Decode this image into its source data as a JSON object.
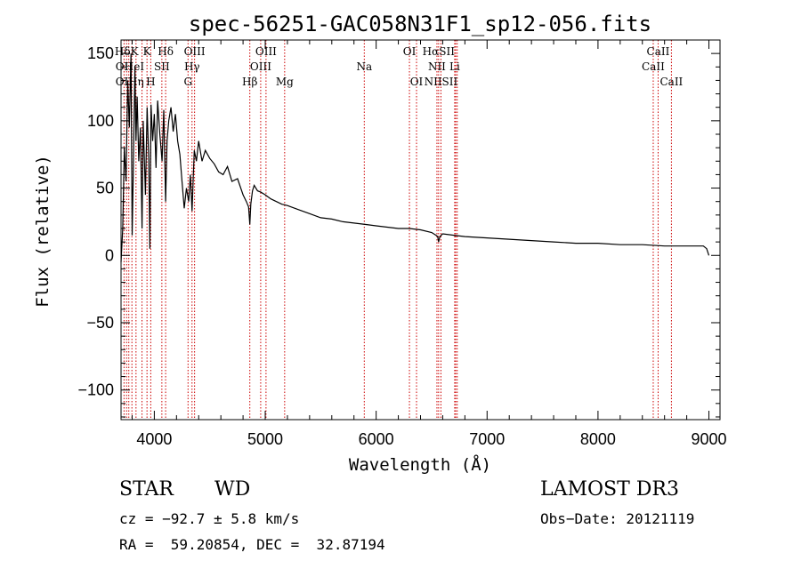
{
  "chart_data": {
    "type": "line",
    "title": "spec-56251-GAC058N31F1_sp12-056.fits",
    "xlabel": "Wavelength (Å)",
    "ylabel": "Flux (relative)",
    "xlim": [
      3700,
      9100
    ],
    "ylim": [
      -122,
      160
    ],
    "xticks": [
      4000,
      5000,
      6000,
      7000,
      8000,
      9000
    ],
    "yticks": [
      -100,
      -50,
      0,
      50,
      100,
      150
    ],
    "grid": false,
    "line_color": "#000000",
    "marker_color": "#cc0000",
    "series": [
      {
        "name": "spectrum",
        "x": [
          3700,
          3715,
          3730,
          3745,
          3760,
          3775,
          3790,
          3800,
          3810,
          3825,
          3835,
          3845,
          3860,
          3875,
          3889,
          3900,
          3920,
          3935,
          3950,
          3960,
          3970,
          3985,
          4000,
          4015,
          4030,
          4050,
          4070,
          4085,
          4102,
          4115,
          4130,
          4150,
          4170,
          4190,
          4210,
          4230,
          4250,
          4270,
          4290,
          4310,
          4325,
          4340,
          4350,
          4360,
          4380,
          4400,
          4430,
          4460,
          4500,
          4540,
          4580,
          4620,
          4660,
          4700,
          4750,
          4800,
          4830,
          4850,
          4861,
          4870,
          4885,
          4900,
          4930,
          4960,
          5000,
          5050,
          5100,
          5150,
          5200,
          5300,
          5400,
          5500,
          5600,
          5700,
          5800,
          5900,
          6000,
          6100,
          6200,
          6300,
          6400,
          6500,
          6540,
          6555,
          6563,
          6575,
          6600,
          6700,
          6800,
          7000,
          7200,
          7400,
          7600,
          7800,
          8000,
          8200,
          8400,
          8600,
          8800,
          8950,
          8980,
          9000
        ],
        "y": [
          -5,
          20,
          80,
          55,
          130,
          95,
          150,
          15,
          60,
          140,
          85,
          118,
          70,
          95,
          20,
          100,
          45,
          110,
          70,
          5,
          112,
          85,
          105,
          65,
          115,
          90,
          70,
          108,
          40,
          85,
          100,
          110,
          92,
          105,
          85,
          75,
          55,
          35,
          50,
          40,
          60,
          33,
          55,
          78,
          70,
          85,
          70,
          78,
          72,
          68,
          62,
          60,
          66,
          55,
          57,
          45,
          40,
          36,
          23,
          38,
          48,
          52,
          48,
          47,
          45,
          42,
          40,
          38,
          37,
          34,
          31,
          28,
          27,
          25,
          24,
          23,
          22,
          21,
          20,
          20,
          19,
          17,
          15,
          14,
          10,
          14,
          16,
          15,
          14,
          13,
          12,
          11,
          10,
          9,
          9,
          8,
          8,
          7,
          7,
          7,
          5,
          0
        ]
      }
    ],
    "line_markers": [
      {
        "label": "HδK",
        "x": 3750,
        "row": 1
      },
      {
        "label": "OII",
        "x": 3727,
        "row": 2
      },
      {
        "label": "OII",
        "x": 3727,
        "row": 3
      },
      {
        "label": "HeI",
        "x": 3820,
        "row": 2
      },
      {
        "label": "Hη",
        "x": 3835,
        "row": 3
      },
      {
        "label": "K",
        "x": 3934,
        "row": 1
      },
      {
        "label": "SII",
        "x": 4068,
        "row": 2
      },
      {
        "label": "H",
        "x": 3968,
        "row": 3
      },
      {
        "label": "Hδ",
        "x": 4102,
        "row": 1
      },
      {
        "label": "OIII",
        "x": 4363,
        "row": 1
      },
      {
        "label": "Hγ",
        "x": 4340,
        "row": 2
      },
      {
        "label": "G",
        "x": 4304,
        "row": 3
      },
      {
        "label": "OIII",
        "x": 5007,
        "row": 1
      },
      {
        "label": "OIII",
        "x": 4959,
        "row": 2
      },
      {
        "label": "Hβ",
        "x": 4861,
        "row": 3
      },
      {
        "label": "Mg",
        "x": 5175,
        "row": 3
      },
      {
        "label": "Na",
        "x": 5893,
        "row": 2
      },
      {
        "label": "OI",
        "x": 6300,
        "row": 1
      },
      {
        "label": "OI",
        "x": 6364,
        "row": 3
      },
      {
        "label": "HαSII",
        "x": 6563,
        "row": 1
      },
      {
        "label": "NII",
        "x": 6548,
        "row": 2
      },
      {
        "label": "Li",
        "x": 6708,
        "row": 2
      },
      {
        "label": "NIISII",
        "x": 6584,
        "row": 3
      },
      {
        "label": "CaII",
        "x": 8542,
        "row": 1
      },
      {
        "label": "CaII",
        "x": 8498,
        "row": 2
      },
      {
        "label": "CaII",
        "x": 8662,
        "row": 3
      }
    ],
    "marker_lines": [
      3727,
      3750,
      3770,
      3798,
      3835,
      3889,
      3934,
      3968,
      4068,
      4102,
      4304,
      4340,
      4363,
      4861,
      4959,
      5007,
      5175,
      5893,
      6300,
      6364,
      6548,
      6563,
      6584,
      6708,
      6717,
      6731,
      8498,
      8542,
      8662
    ]
  },
  "info": {
    "class": "STAR",
    "subclass": "WD",
    "cz": "cz = −92.7 ± 5.8 km/s",
    "radec": "RA =  59.20854, DEC =  32.87194",
    "survey": "LAMOST DR3",
    "obsdate": "Obs−Date: 20121119"
  }
}
